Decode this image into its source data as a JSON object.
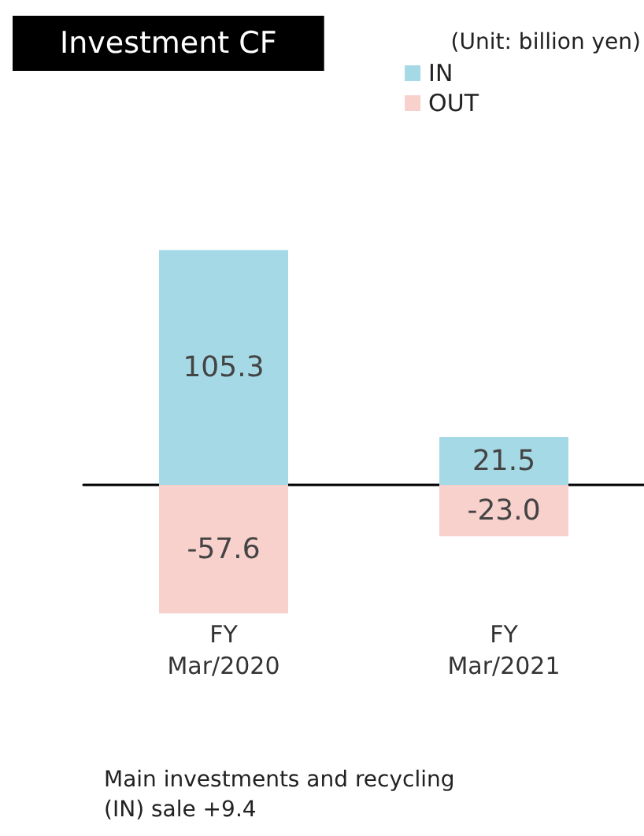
{
  "chart_data": {
    "type": "bar",
    "title": "Investment CF",
    "stacked": true,
    "categories": [
      "FY\nMar/2020",
      "FY\nMar/2021"
    ],
    "series": [
      {
        "name": "IN",
        "color": "#a6d9e6",
        "values": [
          105.3,
          21.5
        ],
        "value_labels": [
          "105.3",
          "21.5"
        ]
      },
      {
        "name": "OUT",
        "color": "#f8d0cc",
        "values": [
          -57.6,
          -23.0
        ],
        "value_labels": [
          "-57.6",
          "-23.0"
        ]
      }
    ],
    "legend": "top right",
    "annotations": [
      "(Unit: billion yen)",
      "Main investments and recycling\n(IN) sale +9.4"
    ]
  }
}
